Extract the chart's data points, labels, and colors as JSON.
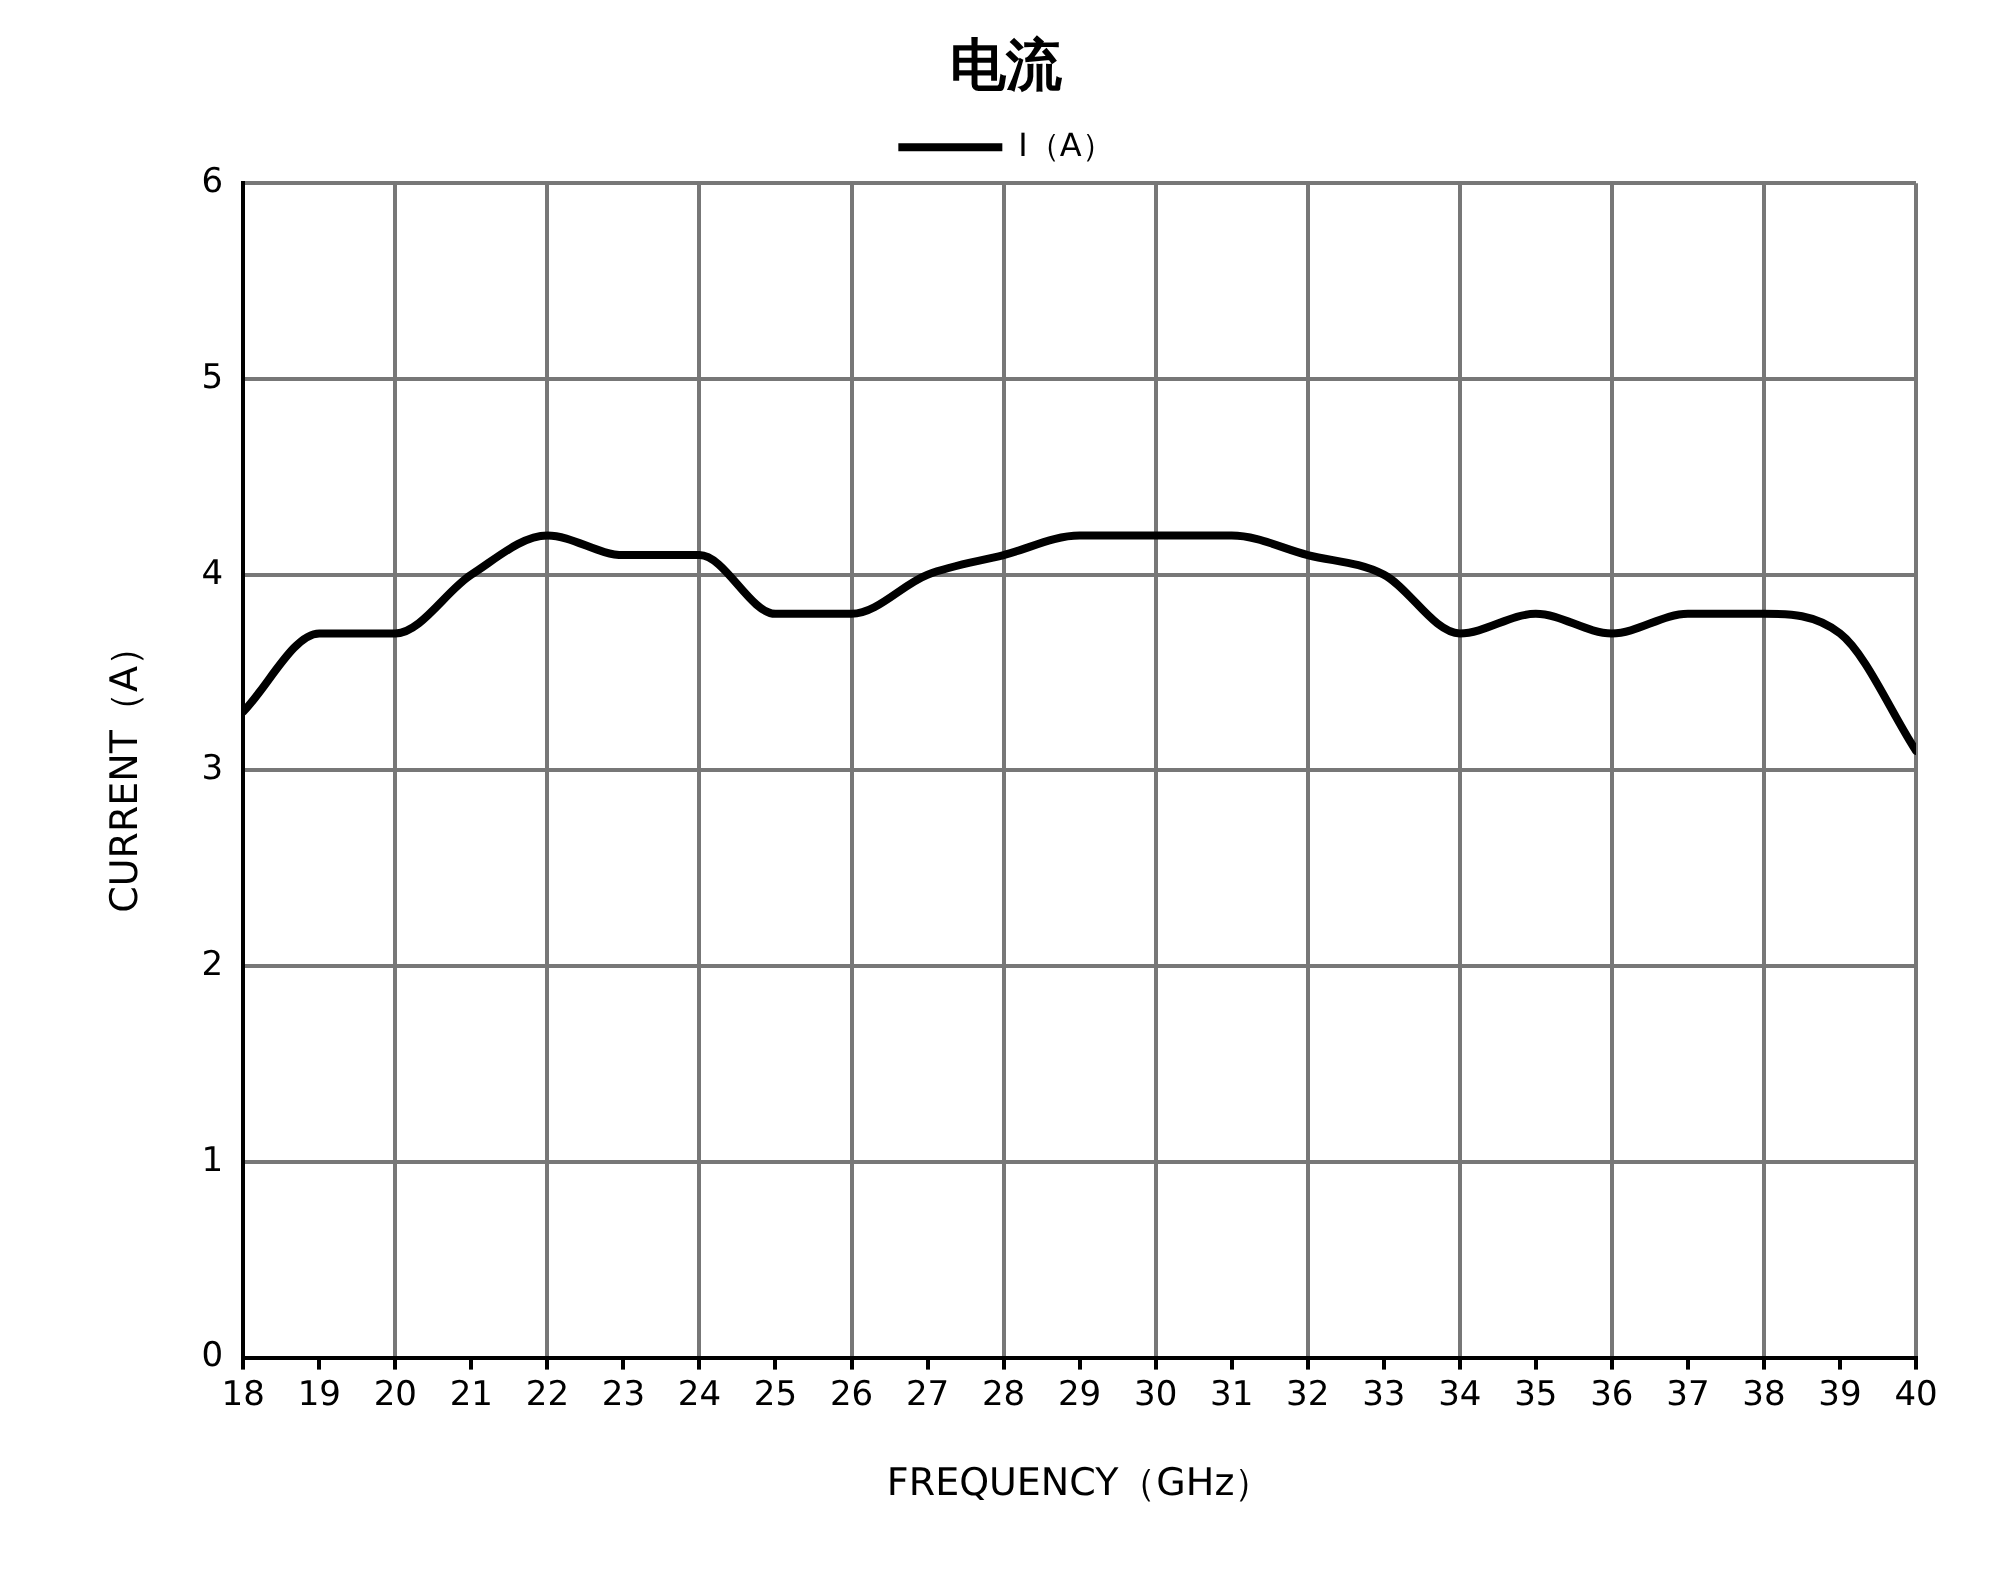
{
  "chart_data": {
    "type": "line",
    "title": "电流",
    "xlabel": "FREQUENCY（GHz）",
    "ylabel": "CURRENT（A）",
    "x": [
      18,
      19,
      20,
      21,
      22,
      23,
      24,
      25,
      26,
      27,
      28,
      29,
      30,
      31,
      32,
      33,
      34,
      35,
      36,
      37,
      38,
      39,
      40
    ],
    "series": [
      {
        "name": "I（A）",
        "color": "#000000",
        "values": [
          3.3,
          3.7,
          3.7,
          4.0,
          4.2,
          4.1,
          4.1,
          3.8,
          3.8,
          4.0,
          4.1,
          4.2,
          4.2,
          4.2,
          4.1,
          4.0,
          3.7,
          3.8,
          3.7,
          3.8,
          3.8,
          3.7,
          3.1
        ]
      }
    ],
    "xlim": [
      18,
      40
    ],
    "xticks": [
      18,
      19,
      20,
      21,
      22,
      23,
      24,
      25,
      26,
      27,
      28,
      29,
      30,
      31,
      32,
      33,
      34,
      35,
      36,
      37,
      38,
      39,
      40
    ],
    "ylim": [
      0,
      6
    ],
    "yticks": [
      0,
      1,
      2,
      3,
      4,
      5,
      6
    ],
    "grid": true,
    "legend": "top",
    "marker": "none",
    "line_style": "solid"
  }
}
